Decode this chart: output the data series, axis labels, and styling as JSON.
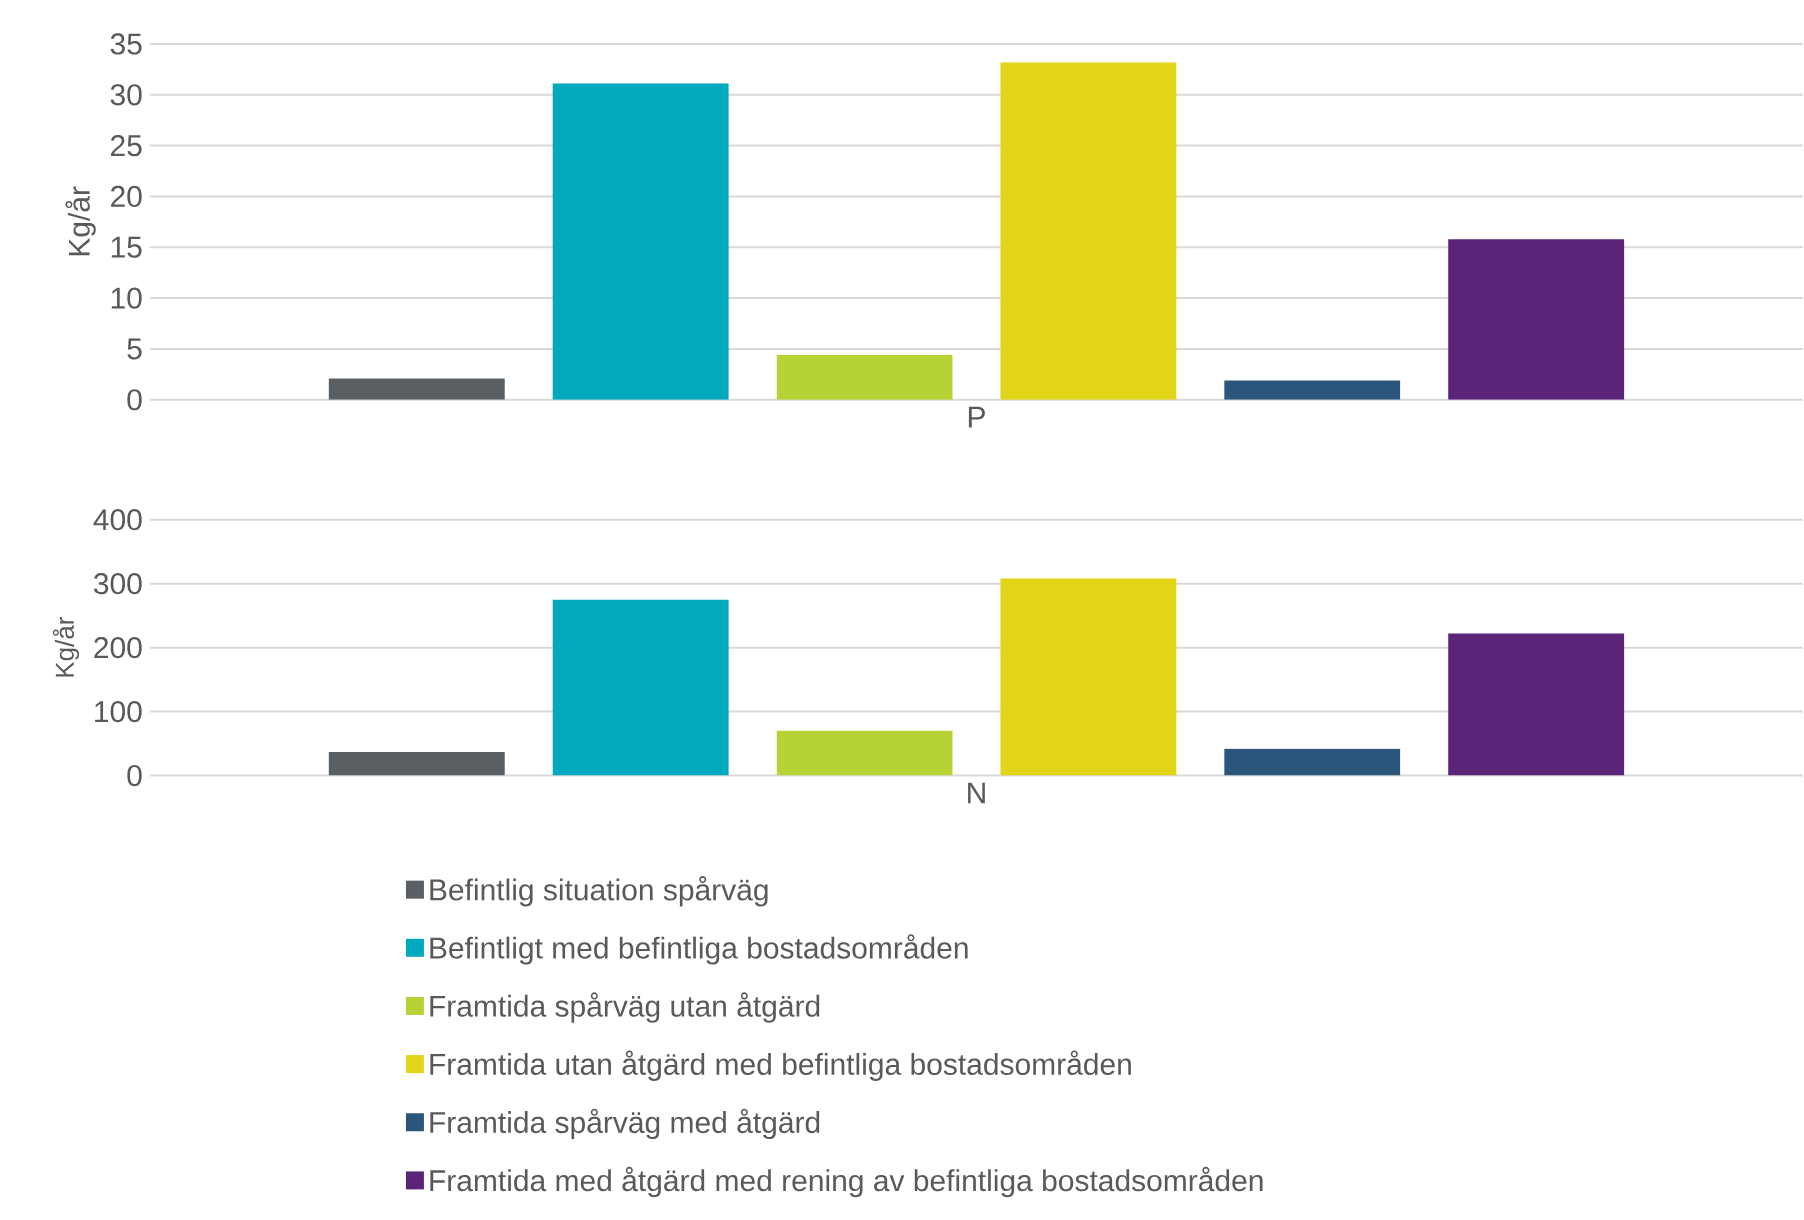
{
  "chart_data": [
    {
      "type": "bar",
      "ylabel": "Kg/år",
      "categories": [
        "P"
      ],
      "ylim": [
        0,
        35
      ],
      "yticks": [
        0,
        5,
        10,
        15,
        20,
        25,
        30,
        35
      ],
      "grid": "y",
      "legend": false,
      "series": [
        {
          "color": "#595f63",
          "values": [
            2.1
          ]
        },
        {
          "color": "#00a9bd",
          "values": [
            31.1
          ]
        },
        {
          "color": "#b5d334",
          "values": [
            4.4
          ]
        },
        {
          "color": "#e2d518",
          "values": [
            33.2
          ]
        },
        {
          "color": "#2b557a",
          "values": [
            1.9
          ]
        },
        {
          "color": "#5c2479",
          "values": [
            15.8
          ]
        }
      ]
    },
    {
      "type": "bar",
      "ylabel": "Kg/år",
      "categories": [
        "N"
      ],
      "ylim": [
        0,
        400
      ],
      "yticks": [
        0,
        100,
        200,
        300,
        400
      ],
      "grid": "y",
      "legend": "bottom",
      "series": [
        {
          "name": "Befintlig situation spårväg",
          "color": "#595f63",
          "values": [
            37
          ]
        },
        {
          "name": "Befintligt med befintliga bostadsområden",
          "color": "#00a9bd",
          "values": [
            275
          ]
        },
        {
          "name": "Framtida spårväg utan åtgärd",
          "color": "#b5d334",
          "values": [
            70
          ]
        },
        {
          "name": "Framtida utan åtgärd med befintliga bostadsområden",
          "color": "#e2d518",
          "values": [
            308
          ]
        },
        {
          "name": "Framtida spårväg med åtgärd",
          "color": "#2b557a",
          "values": [
            42
          ]
        },
        {
          "name": "Framtida med åtgärd med rening av befintliga bostadsområden",
          "color": "#5c2479",
          "values": [
            222
          ]
        }
      ]
    }
  ]
}
